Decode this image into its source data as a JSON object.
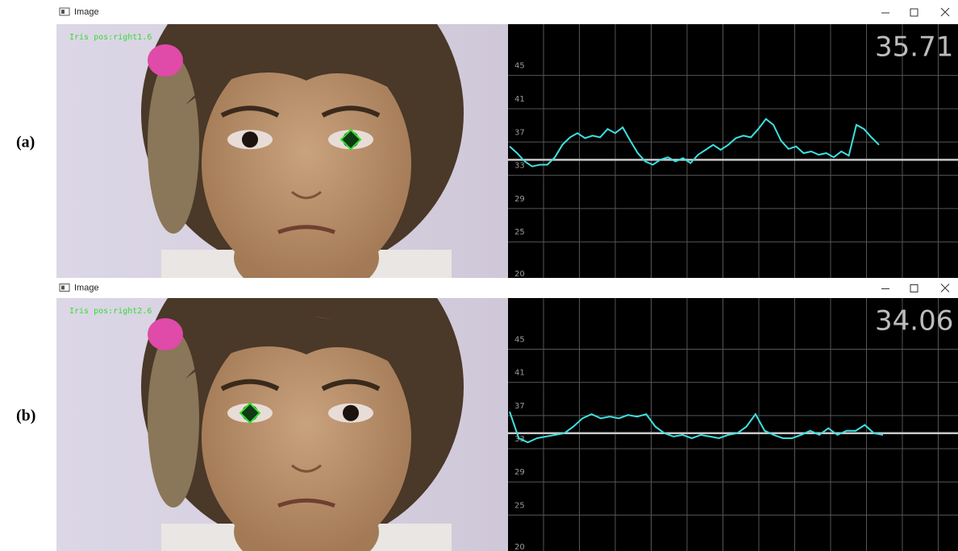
{
  "panels": [
    {
      "label": "(a)",
      "window_title": "Image",
      "overlay_text": "Iris pos:right1.6",
      "reading": "35.71",
      "plot": {
        "ylim": [
          19.5,
          50
        ],
        "yticks": [
          45,
          41,
          37,
          33,
          29,
          25,
          20
        ],
        "baseline": 33.7,
        "line_color": "#3ee0e0",
        "values": [
          35.3,
          34.5,
          33.5,
          32.9,
          33.1,
          33.1,
          34.0,
          35.5,
          36.4,
          36.9,
          36.3,
          36.6,
          36.4,
          37.4,
          36.9,
          37.6,
          36.0,
          34.5,
          33.5,
          33.1,
          33.7,
          34.0,
          33.5,
          33.9,
          33.3,
          34.3,
          34.9,
          35.5,
          34.9,
          35.5,
          36.3,
          36.6,
          36.4,
          37.4,
          38.6,
          37.9,
          36.0,
          35.0,
          35.3,
          34.5,
          34.7,
          34.3,
          34.5,
          34.0,
          34.7,
          34.2,
          37.9,
          37.4,
          36.4,
          35.5
        ]
      }
    },
    {
      "label": "(b)",
      "window_title": "Image",
      "overlay_text": "Iris pos:right2.6",
      "reading": "34.06",
      "plot": {
        "ylim": [
          19.5,
          50
        ],
        "yticks": [
          45,
          41,
          37,
          33,
          29,
          25,
          20
        ],
        "baseline": 33.7,
        "line_color": "#3ee0e0",
        "values": [
          36.3,
          33.1,
          32.6,
          33.1,
          33.3,
          33.5,
          33.7,
          34.5,
          35.5,
          36.0,
          35.5,
          35.7,
          35.5,
          35.9,
          35.7,
          36.0,
          34.5,
          33.7,
          33.3,
          33.5,
          33.1,
          33.5,
          33.3,
          33.1,
          33.5,
          33.7,
          34.5,
          36.0,
          34.0,
          33.5,
          33.1,
          33.1,
          33.5,
          34.0,
          33.5,
          34.3,
          33.5,
          34.0,
          34.0,
          34.7,
          33.7,
          33.5
        ]
      }
    }
  ]
}
